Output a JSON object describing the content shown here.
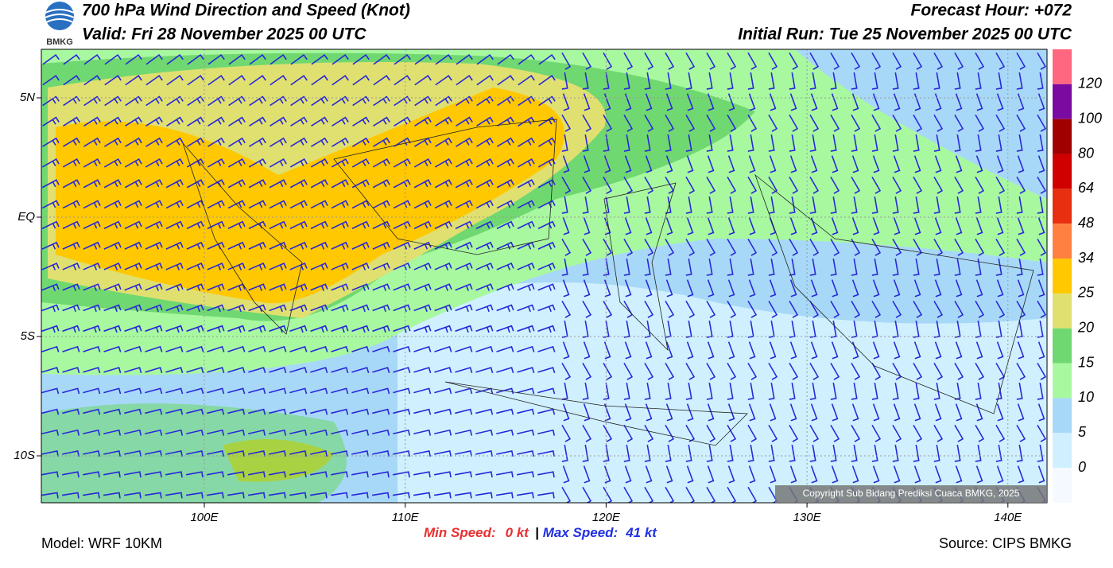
{
  "header": {
    "logo_text": "BMKG",
    "title": "700 hPa Wind Direction and Speed (Knot)",
    "valid": "Valid: Fri 28 November 2025 00 UTC",
    "forecast_hour": "Forecast Hour: +072",
    "initial_run": "Initial Run: Tue 25 November 2025 00 UTC"
  },
  "map": {
    "lat_labels": [
      "5N",
      "EQ",
      "5S",
      "10S"
    ],
    "lon_labels": [
      "100E",
      "110E",
      "120E",
      "130E",
      "140E"
    ],
    "copyright": "Copyright Sub Bidang Prediksi Cuaca BMKG, 2025"
  },
  "colorbar": {
    "labels": [
      120,
      100,
      80,
      64,
      48,
      34,
      25,
      20,
      15,
      10,
      5,
      0
    ],
    "colors": [
      "#ff6680",
      "#7a0aa0",
      "#a00000",
      "#d00000",
      "#e83010",
      "#ff8040",
      "#ffc800",
      "#e0e070",
      "#70d870",
      "#a8f8a0",
      "#a8d8f8",
      "#d0f0ff",
      "#f4faff"
    ]
  },
  "footer": {
    "model": "Model: WRF 10KM",
    "min_label": "Min Speed:",
    "min_value": "0 kt",
    "separator": "|",
    "max_label": "Max Speed:",
    "max_value": "41 kt",
    "source": "Source: CIPS BMKG"
  }
}
